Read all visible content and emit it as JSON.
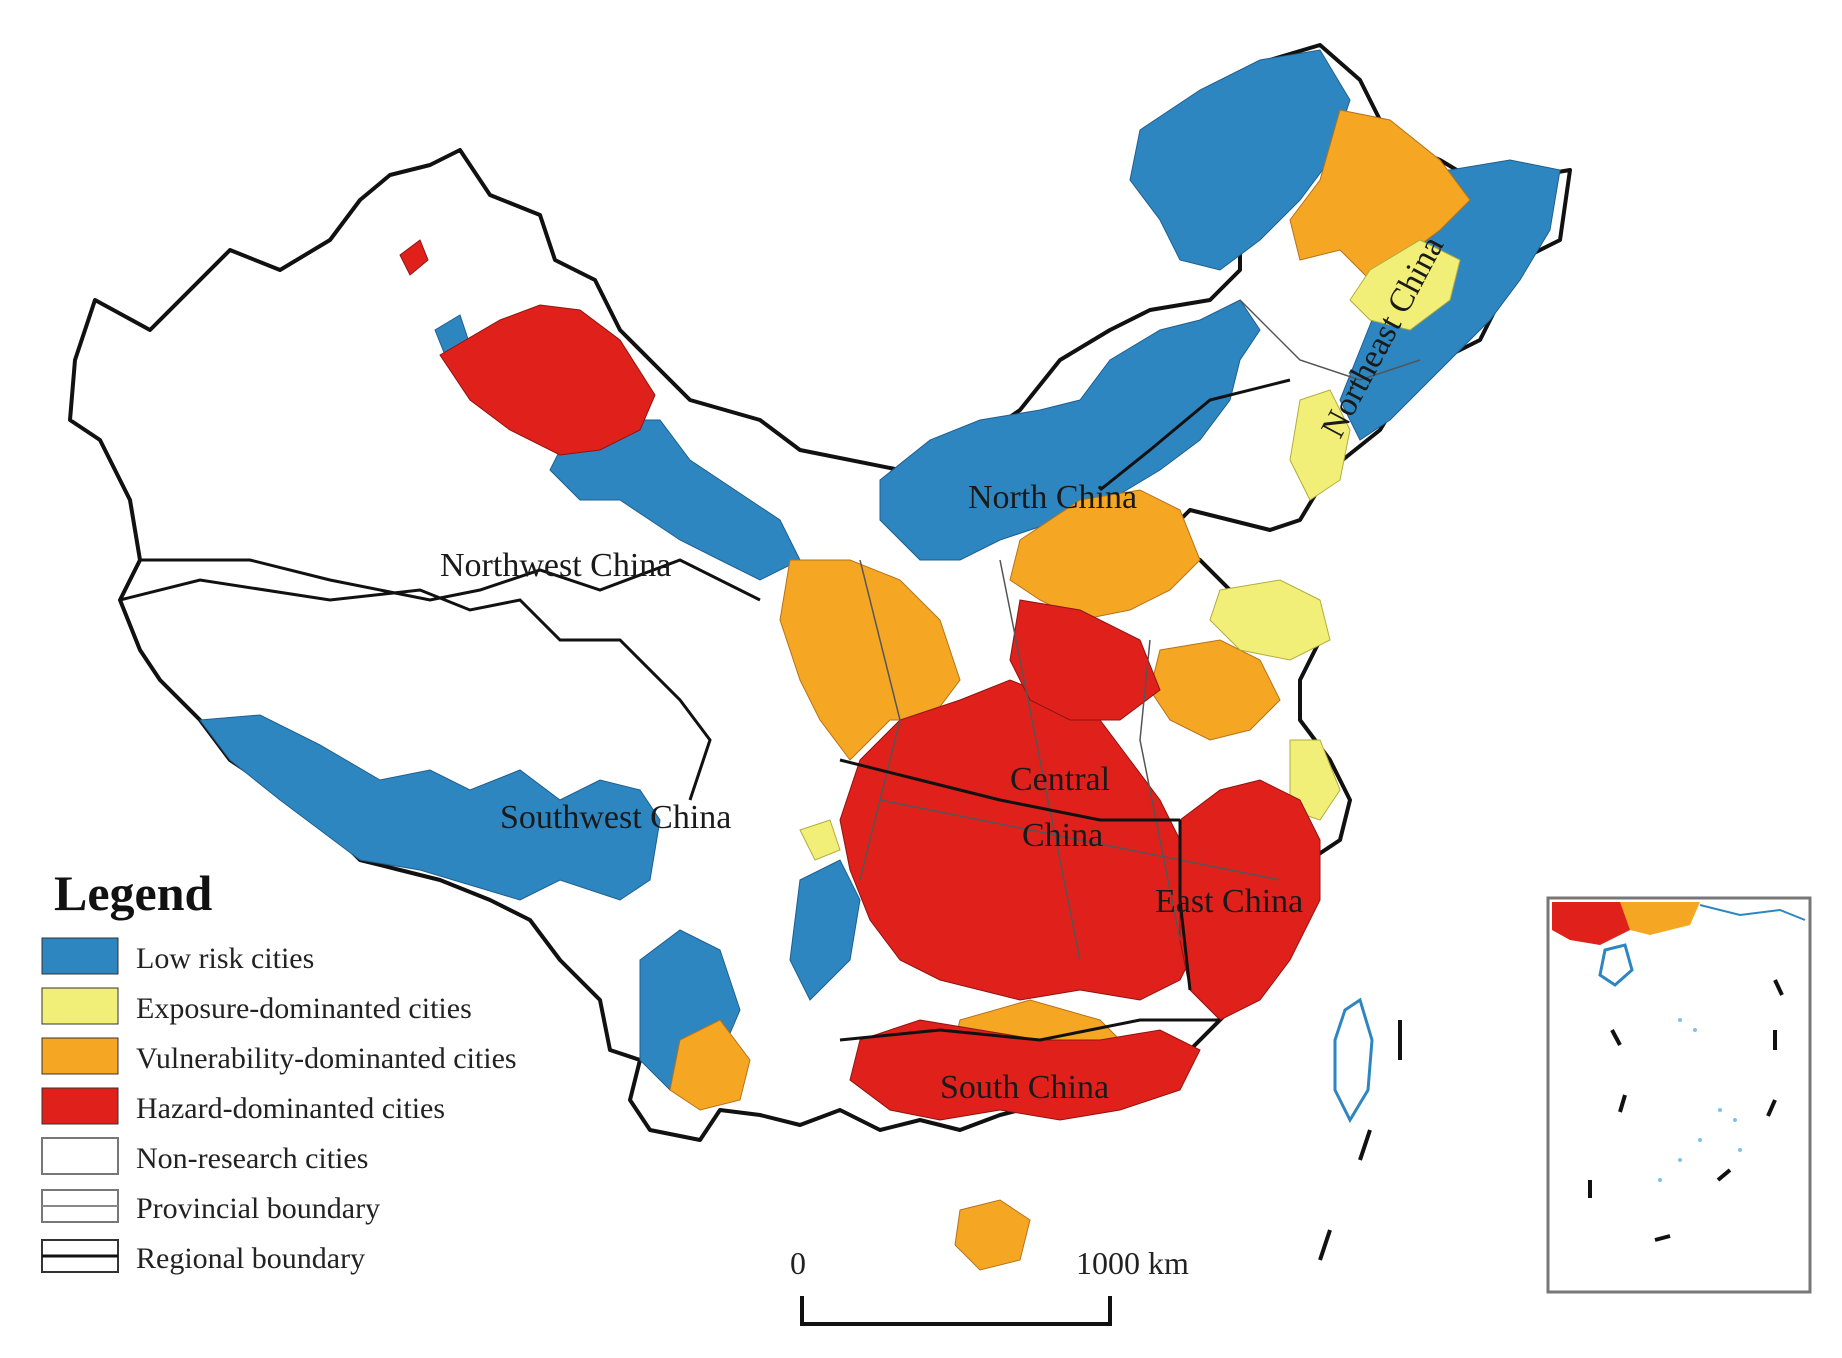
{
  "regions": {
    "northwest": "Northwest China",
    "north": "North China",
    "northeast": "Northeast China",
    "southwest": "Southwest China",
    "central_line1": "Central",
    "central_line2": "China",
    "east": "East China",
    "south": "South China"
  },
  "legend": {
    "title": "Legend",
    "items": [
      {
        "label": "Low risk cities",
        "color": "#2e86c1"
      },
      {
        "label": "Exposure-dominanted cities",
        "color": "#f2ef78"
      },
      {
        "label": "Vulnerability-dominanted cities",
        "color": "#f5a623"
      },
      {
        "label": "Hazard-dominanted cities",
        "color": "#e0201b"
      },
      {
        "label": "Non-research cities",
        "color": "#ffffff"
      },
      {
        "label": "Provincial boundary",
        "color": "#666666"
      },
      {
        "label": "Regional boundary",
        "color": "#111111"
      }
    ]
  },
  "scale_bar": {
    "start": "0",
    "end": "1000 km"
  }
}
